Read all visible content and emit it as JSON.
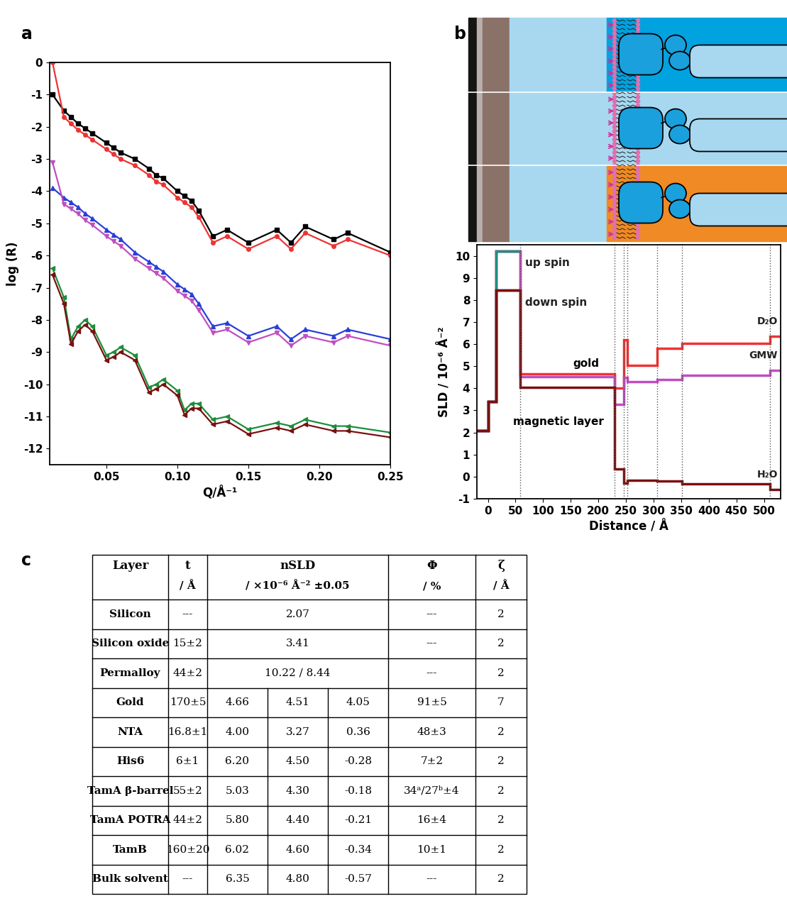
{
  "panel_labels": [
    "a",
    "b",
    "c"
  ],
  "chart_data": [
    {
      "type": "line",
      "xlabel": "Q/Å⁻¹",
      "ylabel": "log (R)",
      "xlim": [
        0.01,
        0.25
      ],
      "xticks": [
        0.05,
        {
          "value": 0.1,
          "label": "0.10"
        },
        0.15,
        {
          "value": 0.2,
          "label": "0.20"
        },
        0.25
      ],
      "ylim": [
        -12.5,
        0
      ],
      "yticks": [
        -12,
        -11,
        -10,
        -9,
        -8,
        -7,
        -6,
        -5,
        -4,
        -3,
        -2,
        -1,
        0
      ],
      "x": [
        0.012,
        0.02,
        0.025,
        0.03,
        0.035,
        0.04,
        0.05,
        0.055,
        0.06,
        0.07,
        0.08,
        0.085,
        0.09,
        0.1,
        0.105,
        0.11,
        0.115,
        0.125,
        0.135,
        0.15,
        0.17,
        0.18,
        0.19,
        0.21,
        0.22,
        0.25
      ],
      "series": [
        {
          "color": "#000000",
          "marker": "s",
          "line_style": "solid",
          "values": [
            -1.0,
            -1.5,
            -1.7,
            -1.9,
            -2.05,
            -2.2,
            -2.5,
            -2.65,
            -2.8,
            -3.0,
            -3.3,
            -3.5,
            -3.6,
            -4.0,
            -4.15,
            -4.3,
            -4.6,
            -5.4,
            -5.2,
            -5.6,
            -5.2,
            -5.6,
            -5.1,
            -5.5,
            -5.3,
            -5.9
          ]
        },
        {
          "color": "#ee3333",
          "marker": "o",
          "line_style": "solid",
          "values": [
            0.0,
            -1.7,
            -1.9,
            -2.1,
            -2.25,
            -2.4,
            -2.7,
            -2.85,
            -3.0,
            -3.2,
            -3.5,
            -3.7,
            -3.8,
            -4.2,
            -4.35,
            -4.5,
            -4.8,
            -5.6,
            -5.4,
            -5.8,
            -5.4,
            -5.8,
            -5.3,
            -5.7,
            -5.5,
            -6.0
          ]
        },
        {
          "color": "#2a3fd6",
          "marker": "^",
          "line_style": "solid",
          "values": [
            -3.9,
            -4.2,
            -4.35,
            -4.5,
            -4.7,
            -4.85,
            -5.2,
            -5.35,
            -5.5,
            -5.9,
            -6.2,
            -6.35,
            -6.5,
            -6.9,
            -7.05,
            -7.2,
            -7.5,
            -8.2,
            -8.1,
            -8.5,
            -8.2,
            -8.6,
            -8.3,
            -8.5,
            -8.3,
            -8.6
          ]
        },
        {
          "color": "#c04ec0",
          "marker": "v",
          "line_style": "solid",
          "values": [
            -3.1,
            -4.4,
            -4.55,
            -4.7,
            -4.9,
            -5.05,
            -5.4,
            -5.55,
            -5.7,
            -6.1,
            -6.4,
            -6.55,
            -6.7,
            -7.1,
            -7.25,
            -7.4,
            -7.7,
            -8.4,
            -8.3,
            -8.7,
            -8.4,
            -8.8,
            -8.5,
            -8.7,
            -8.5,
            -8.8
          ]
        },
        {
          "color": "#1a8f3a",
          "marker": "<",
          "line_style": "solid",
          "values": [
            -6.4,
            -7.3,
            -8.6,
            -8.2,
            -8.0,
            -8.2,
            -9.1,
            -9.0,
            -8.85,
            -9.1,
            -10.1,
            -10.0,
            -9.85,
            -10.2,
            -10.8,
            -10.6,
            -10.6,
            -11.1,
            -11.0,
            -11.4,
            -11.2,
            -11.3,
            -11.1,
            -11.3,
            -11.3,
            -11.5
          ]
        },
        {
          "color": "#7a1010",
          "marker": "<",
          "line_style": "solid",
          "values": [
            -6.6,
            -7.5,
            -8.75,
            -8.35,
            -8.15,
            -8.35,
            -9.25,
            -9.15,
            -9.0,
            -9.25,
            -10.25,
            -10.15,
            -10.0,
            -10.35,
            -10.95,
            -10.75,
            -10.75,
            -11.25,
            -11.15,
            -11.55,
            -11.35,
            -11.45,
            -11.25,
            -11.45,
            -11.45,
            -11.65
          ]
        }
      ]
    },
    {
      "type": "step",
      "xlabel": "Distance / Å",
      "ylabel": "SLD / 10⁻⁶ Å⁻²",
      "xlim": [
        -20,
        530
      ],
      "xticks": [
        0,
        50,
        100,
        150,
        200,
        250,
        300,
        350,
        400,
        450,
        500
      ],
      "ylim": [
        -1,
        10.5
      ],
      "yticks": [
        -1,
        0,
        1,
        2,
        3,
        4,
        5,
        6,
        7,
        8,
        9,
        10
      ],
      "annotations": [
        "gold",
        "magnetic layer"
      ],
      "series": [
        {
          "name": "D₂O",
          "color": "#ee3333",
          "edges": [
            -20,
            0,
            15,
            59,
            229,
            246,
            252,
            307,
            351,
            511,
            540
          ],
          "values": [
            2.07,
            3.41,
            10.22,
            4.66,
            4.0,
            6.2,
            5.03,
            5.8,
            6.02,
            6.35
          ]
        },
        {
          "name": "GMW",
          "color": "#c04ec0",
          "edges": [
            -20,
            0,
            15,
            59,
            229,
            246,
            252,
            307,
            351,
            511,
            540
          ],
          "values": [
            2.07,
            3.41,
            10.22,
            4.51,
            3.27,
            4.5,
            4.3,
            4.4,
            4.6,
            4.8
          ]
        },
        {
          "name": "H₂O",
          "color": "#7a1010",
          "edges": [
            -20,
            0,
            15,
            59,
            229,
            246,
            252,
            307,
            351,
            511,
            540
          ],
          "values": [
            2.07,
            3.41,
            8.44,
            4.05,
            0.36,
            -0.28,
            -0.18,
            -0.21,
            -0.34,
            -0.57
          ]
        },
        {
          "name": "up spin",
          "color": "#1f8f80",
          "edges": [
            -20,
            0,
            15,
            59
          ],
          "values": [
            2.07,
            3.41,
            10.22
          ]
        },
        {
          "name": "down spin",
          "color": "#7a1010",
          "edges": [
            -20,
            0,
            15,
            59
          ],
          "values": [
            2.07,
            3.41,
            8.44
          ]
        }
      ]
    }
  ],
  "table": {
    "header": [
      [
        "Layer"
      ],
      [
        "t",
        "/ Å"
      ],
      [
        "nSLD",
        "/ ×10⁻⁶ Å⁻² ±0.05"
      ],
      [
        "Φ",
        "/ %"
      ],
      [
        "ζ",
        "/ Å"
      ]
    ],
    "rows": [
      {
        "layer": "Silicon",
        "t": "---",
        "nsld": [
          "2.07"
        ],
        "phi": "---",
        "zeta": "2"
      },
      {
        "layer": "Silicon oxide",
        "t": "15±2",
        "nsld": [
          "3.41"
        ],
        "phi": "---",
        "zeta": "2"
      },
      {
        "layer": "Permalloy",
        "t": "44±2",
        "nsld": [
          "10.22 / 8.44"
        ],
        "phi": "---",
        "zeta": "2"
      },
      {
        "layer": "Gold",
        "t": "170±5",
        "nsld": [
          "4.66",
          "4.51",
          "4.05"
        ],
        "phi": "91±5",
        "zeta": "7"
      },
      {
        "layer": "NTA",
        "t": "16.8±1",
        "nsld": [
          "4.00",
          "3.27",
          "0.36"
        ],
        "phi": "48±3",
        "zeta": "2"
      },
      {
        "layer": "His6",
        "t": "6±1",
        "nsld": [
          "6.20",
          "4.50",
          "-0.28"
        ],
        "phi": "7±2",
        "zeta": "2"
      },
      {
        "layer": "TamA β-barrel",
        "t": "55±2",
        "nsld": [
          "5.03",
          "4.30",
          "-0.18"
        ],
        "phi": "34ᵃ/27ᵇ±4",
        "zeta": "2"
      },
      {
        "layer": "TamA POTRA",
        "t": "44±2",
        "nsld": [
          "5.80",
          "4.40",
          "-0.21"
        ],
        "phi": "16±4",
        "zeta": "2"
      },
      {
        "layer": "TamB",
        "t": "160±20",
        "nsld": [
          "6.02",
          "4.60",
          "-0.34"
        ],
        "phi": "10±1",
        "zeta": "2"
      },
      {
        "layer": "Bulk solvent",
        "t": "---",
        "nsld": [
          "6.35",
          "4.80",
          "-0.57"
        ],
        "phi": "---",
        "zeta": "2"
      }
    ]
  }
}
